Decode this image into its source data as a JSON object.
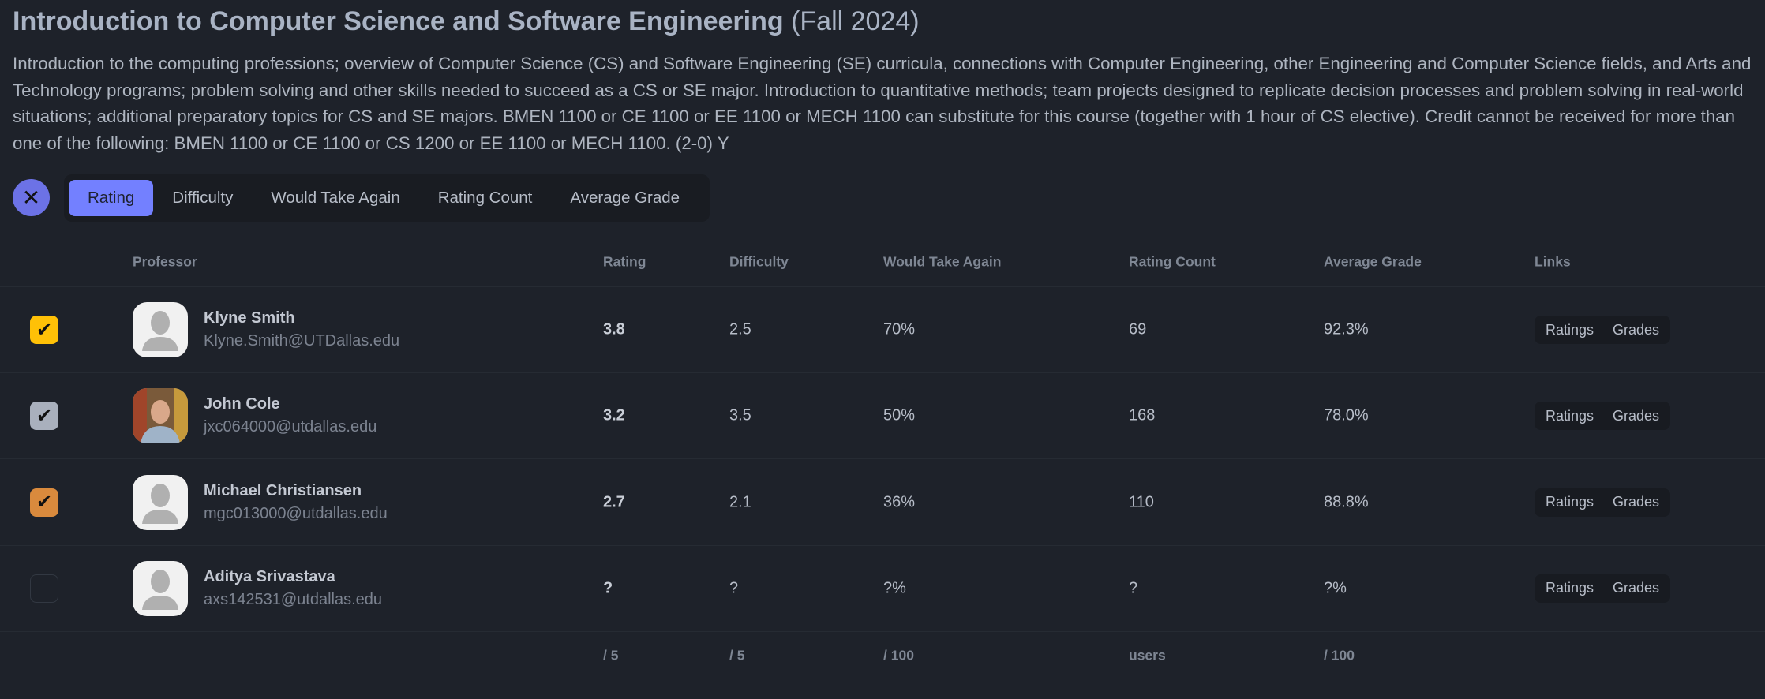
{
  "course": {
    "title": "Introduction to Computer Science and Software Engineering",
    "term": "(Fall 2024)",
    "description": "Introduction to the computing professions; overview of Computer Science (CS) and Software Engineering (SE) curricula, connections with Computer Engineering, other Engineering and Computer Science fields, and Arts and Technology programs; problem solving and other skills needed to succeed as a CS or SE major. Introduction to quantitative methods; team projects designed to replicate decision processes and problem solving in real-world situations; additional preparatory topics for CS and SE majors. BMEN 1100 or CE 1100 or EE 1100 or MECH 1100 can substitute for this course (together with 1 hour of CS elective). Credit cannot be received for more than one of the following: BMEN 1100 or CE 1100 or CS 1200 or EE 1100 or MECH 1100. (2-0) Y"
  },
  "close_icon": "✕",
  "tabs": [
    "Rating",
    "Difficulty",
    "Would Take Again",
    "Rating Count",
    "Average Grade"
  ],
  "active_tab": "Rating",
  "columns": [
    "Professor",
    "Rating",
    "Difficulty",
    "Would Take Again",
    "Rating Count",
    "Average Grade",
    "Links"
  ],
  "rows": [
    {
      "name": "Klyne Smith",
      "email": "Klyne.Smith@UTDallas.edu",
      "rating": "3.8",
      "difficulty": "2.5",
      "wta": "70%",
      "count": "69",
      "grade": "92.3%",
      "checked": true,
      "color": "#ffc107",
      "photo": false
    },
    {
      "name": "John Cole",
      "email": "jxc064000@utdallas.edu",
      "rating": "3.2",
      "difficulty": "3.5",
      "wta": "50%",
      "count": "168",
      "grade": "78.0%",
      "checked": true,
      "color": "#a9b0bd",
      "photo": true
    },
    {
      "name": "Michael Christiansen",
      "email": "mgc013000@utdallas.edu",
      "rating": "2.7",
      "difficulty": "2.1",
      "wta": "36%",
      "count": "110",
      "grade": "88.8%",
      "checked": true,
      "color": "#d98a3d",
      "photo": false
    },
    {
      "name": "Aditya Srivastava",
      "email": "axs142531@utdallas.edu",
      "rating": "?",
      "difficulty": "?",
      "wta": "?%",
      "count": "?",
      "grade": "?%",
      "checked": false,
      "color": "#1e222a",
      "photo": false
    }
  ],
  "links": {
    "ratings": "Ratings",
    "grades": "Grades"
  },
  "footer": {
    "rating": "/ 5",
    "difficulty": "/ 5",
    "wta": "/ 100",
    "count": "users",
    "grade": "/ 100"
  }
}
